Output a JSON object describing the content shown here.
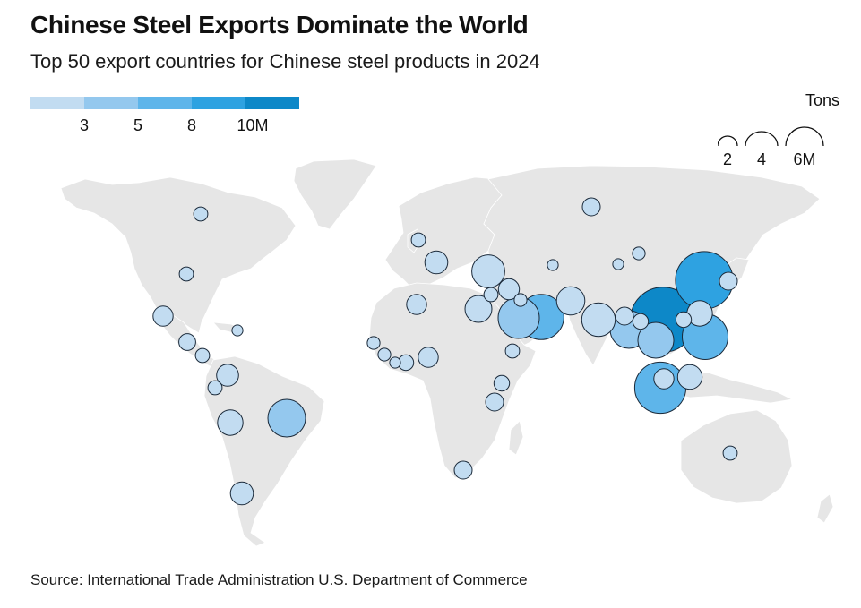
{
  "header": {
    "title": "Chinese Steel Exports Dominate the World",
    "subtitle": "Top 50 export countries for Chinese steel products in 2024"
  },
  "color_legend": {
    "colors": [
      "#c2dcf1",
      "#94c8ee",
      "#5eb5ea",
      "#2ea2e1",
      "#0d88c8"
    ],
    "ticks": [
      "3",
      "5",
      "8",
      "10M"
    ]
  },
  "size_legend": {
    "unit_label": "Tons",
    "labels": [
      "2",
      "4",
      "6M"
    ]
  },
  "colors": {
    "land": "#e6e6e6",
    "border": "#ffffff",
    "bubble_stroke": "#1b2a3a"
  },
  "source": "Source: International Trade Administration U.S. Department of Commerce",
  "map": {
    "bubbles": [
      {
        "region": "Canada",
        "tons_millions": 0.5
      },
      {
        "region": "United States",
        "tons_millions": 0.5
      },
      {
        "region": "Mexico",
        "tons_millions": 1.0
      },
      {
        "region": "Caribbean",
        "tons_millions": 0.3
      },
      {
        "region": "Guatemala",
        "tons_millions": 0.7
      },
      {
        "region": "Panama",
        "tons_millions": 0.5
      },
      {
        "region": "Colombia",
        "tons_millions": 1.2
      },
      {
        "region": "Ecuador",
        "tons_millions": 0.5
      },
      {
        "region": "Peru",
        "tons_millions": 1.6
      },
      {
        "region": "Brazil",
        "tons_millions": 3.5
      },
      {
        "region": "Chile",
        "tons_millions": 1.3
      },
      {
        "region": "United Kingdom",
        "tons_millions": 0.5
      },
      {
        "region": "Belgium",
        "tons_millions": 1.3
      },
      {
        "region": "Italy",
        "tons_millions": 2.7
      },
      {
        "region": "Greece",
        "tons_millions": 0.5
      },
      {
        "region": "Turkey",
        "tons_millions": 1.1
      },
      {
        "region": "Algeria",
        "tons_millions": 1.0
      },
      {
        "region": "Egypt",
        "tons_millions": 1.8
      },
      {
        "region": "Iraq",
        "tons_millions": 0.4
      },
      {
        "region": "Saudi Arabia",
        "tons_millions": 4.2
      },
      {
        "region": "UAE",
        "tons_millions": 5.1
      },
      {
        "region": "Pakistan",
        "tons_millions": 2.0
      },
      {
        "region": "India",
        "tons_millions": 2.8
      },
      {
        "region": "Bangladesh",
        "tons_millions": 0.8
      },
      {
        "region": "Kazakhstan",
        "tons_millions": 0.3
      },
      {
        "region": "Uzbekistan",
        "tons_millions": 0.4
      },
      {
        "region": "Russia",
        "tons_millions": 0.8
      },
      {
        "region": "Senegal",
        "tons_millions": 0.4
      },
      {
        "region": "Guinea",
        "tons_millions": 0.4
      },
      {
        "region": "Liberia",
        "tons_millions": 0.3
      },
      {
        "region": "Cote d'Ivoire",
        "tons_millions": 0.6
      },
      {
        "region": "Ghana",
        "tons_millions": 1.0
      },
      {
        "region": "Ethiopia",
        "tons_millions": 0.5
      },
      {
        "region": "Kenya",
        "tons_millions": 0.6
      },
      {
        "region": "Tanzania",
        "tons_millions": 0.8
      },
      {
        "region": "South Africa",
        "tons_millions": 0.8
      },
      {
        "region": "Myanmar",
        "tons_millions": 0.6
      },
      {
        "region": "Thailand",
        "tons_millions": 3.2
      },
      {
        "region": "Vietnam",
        "tons_millions": 10.5
      },
      {
        "region": "Hong Kong",
        "tons_millions": 0.6
      },
      {
        "region": "Taiwan",
        "tons_millions": 1.6
      },
      {
        "region": "Philippines",
        "tons_millions": 5.2
      },
      {
        "region": "Malaysia",
        "tons_millions": 1.0
      },
      {
        "region": "Indonesia",
        "tons_millions": 6.5
      },
      {
        "region": "Singapore",
        "tons_millions": 1.5
      },
      {
        "region": "South Korea",
        "tons_millions": 8.2
      },
      {
        "region": "Japan",
        "tons_millions": 0.8
      },
      {
        "region": "Cambodia",
        "tons_millions": 3.5
      },
      {
        "region": "Australia",
        "tons_millions": 0.5
      },
      {
        "region": "Mongolia",
        "tons_millions": 0.3
      }
    ]
  }
}
